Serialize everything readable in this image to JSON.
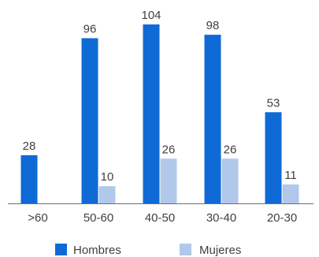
{
  "chart_data": {
    "type": "bar",
    "categories": [
      ">60",
      "50-60",
      "40-50",
      "30-40",
      "20-30"
    ],
    "series": [
      {
        "name": "Hombres",
        "color": "#0f6ad6",
        "values": [
          28,
          96,
          104,
          98,
          53
        ]
      },
      {
        "name": "Mujeres",
        "color": "#b1c8ea",
        "values": [
          null,
          10,
          26,
          26,
          11
        ]
      }
    ],
    "value_labels": true,
    "ylim": [
      0,
      104
    ],
    "grid": false,
    "legend_position": "bottom-center",
    "axis_color": "#6e6e6e"
  }
}
